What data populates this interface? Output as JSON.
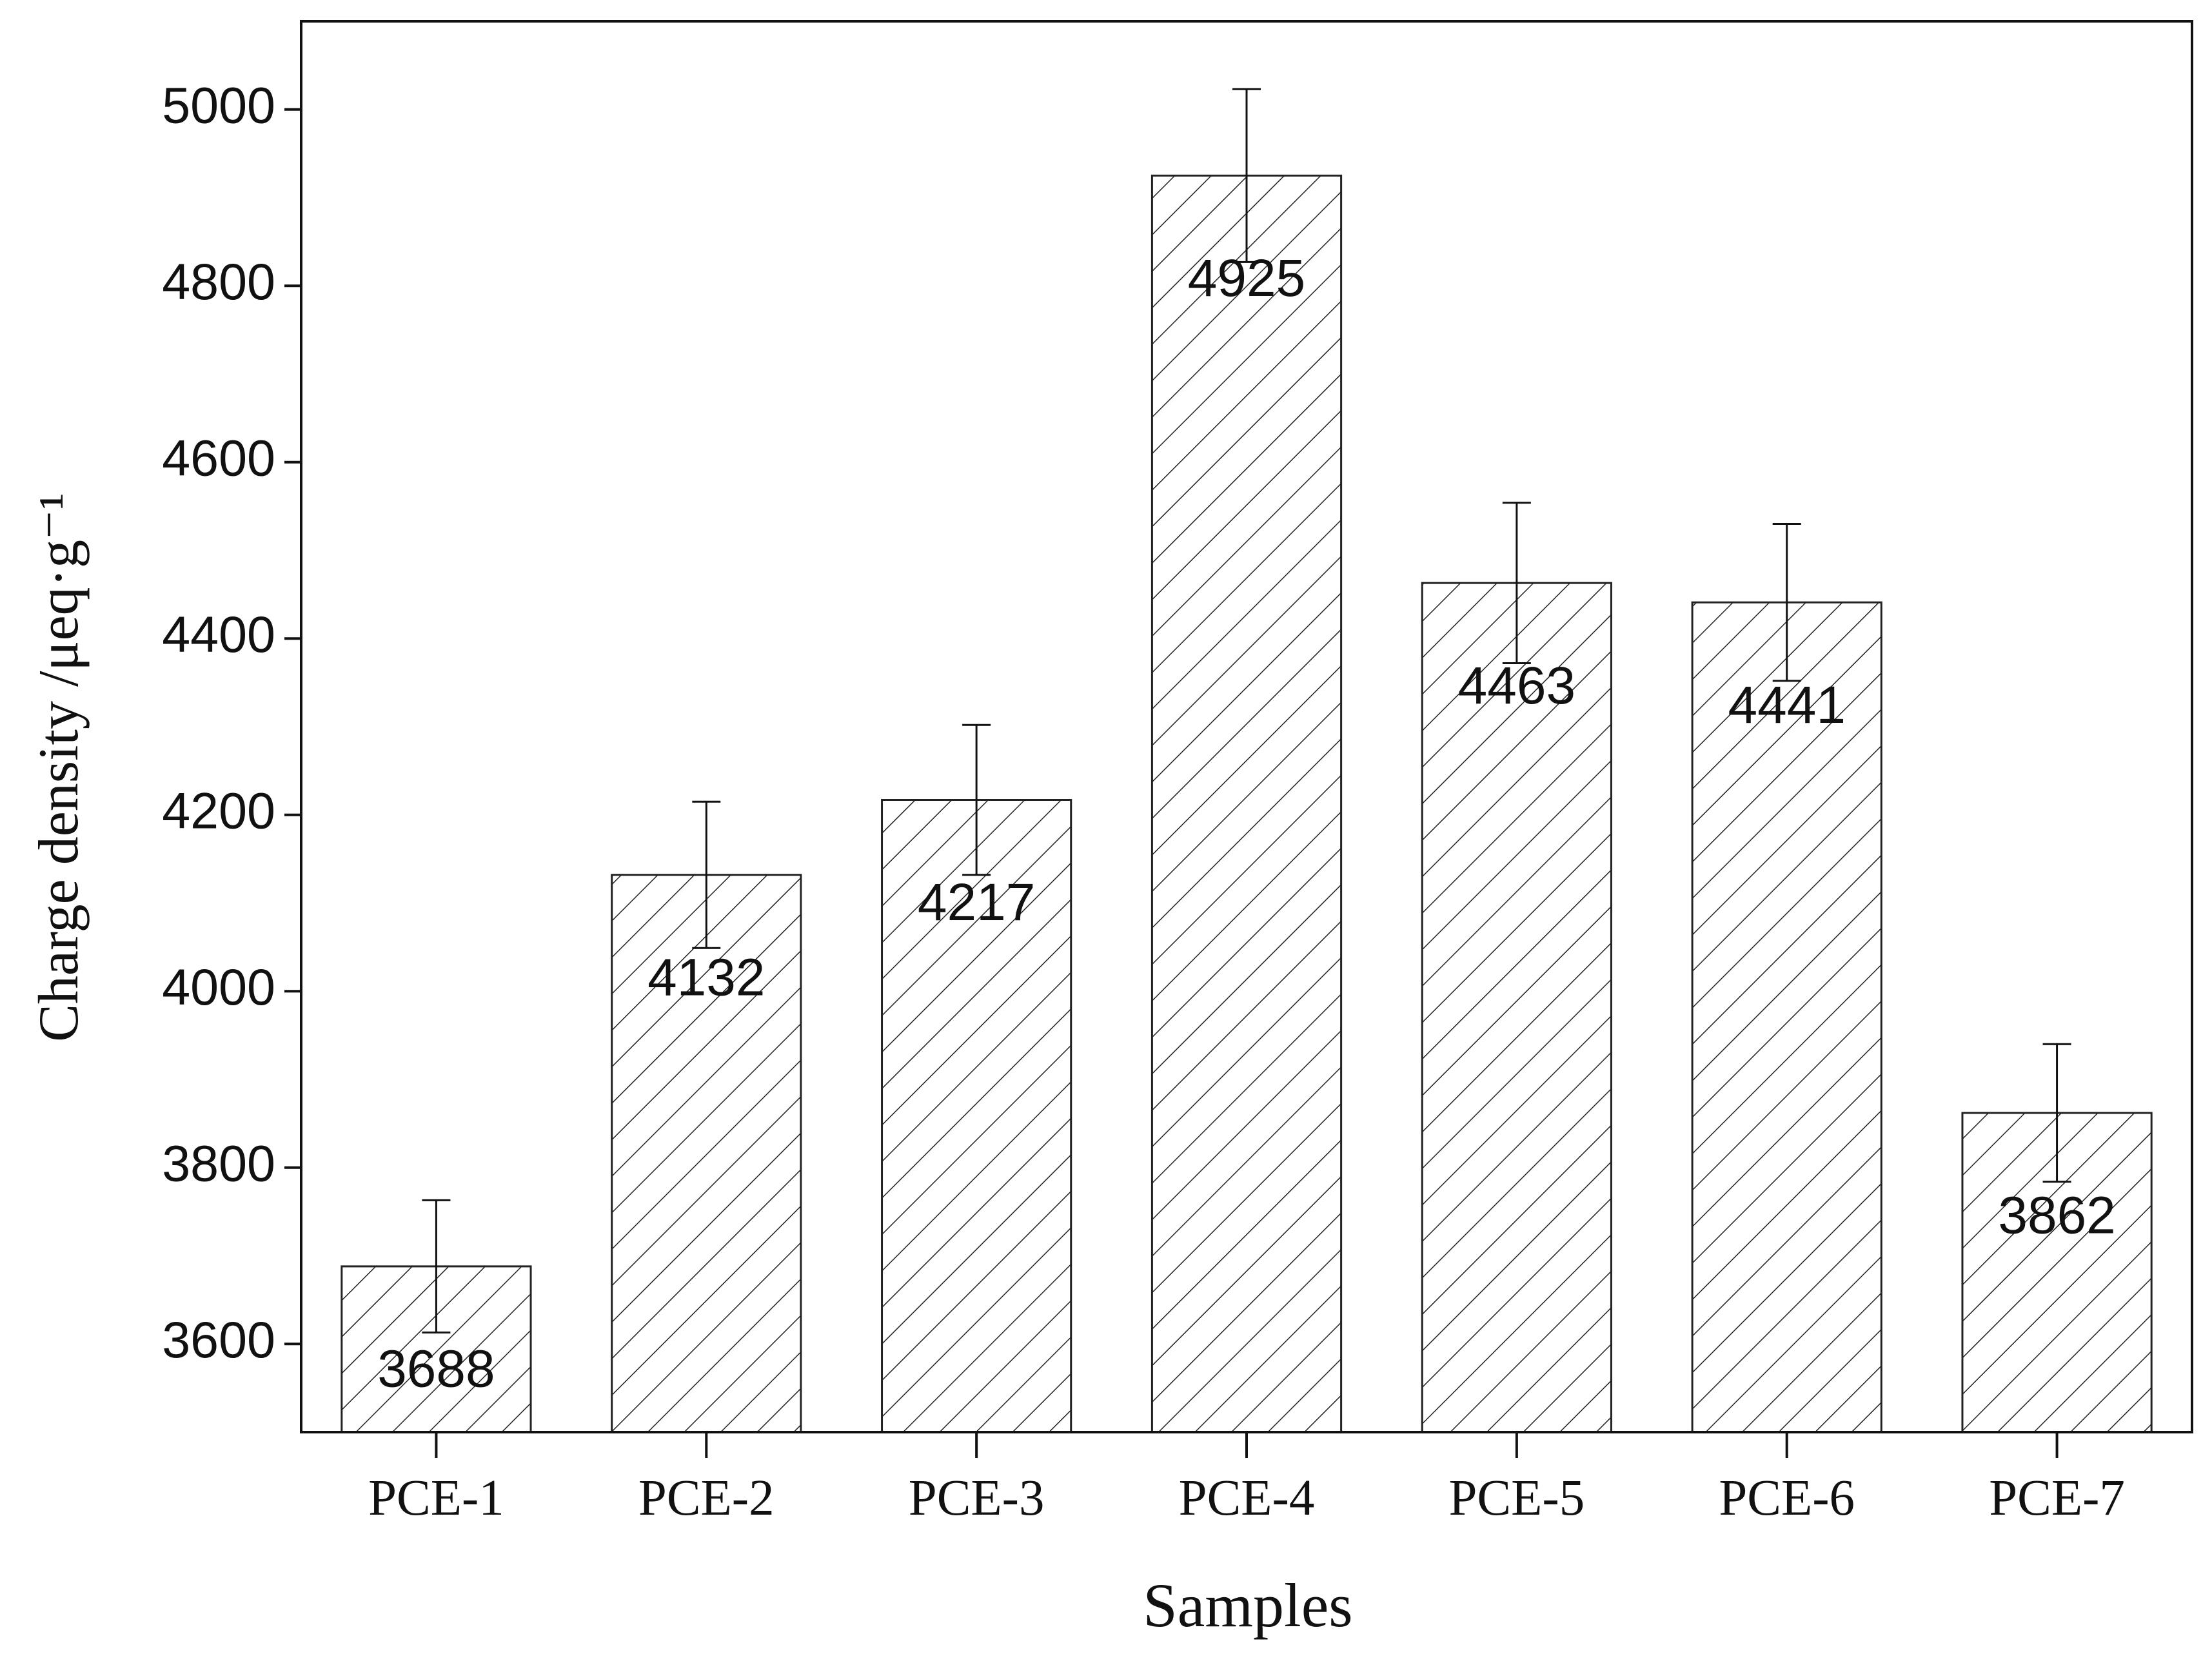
{
  "chart_data": {
    "type": "bar",
    "x_label": "Samples",
    "y_label": "Charge density /μeq·g⁻¹",
    "categories": [
      "PCE-1",
      "PCE-2",
      "PCE-3",
      "PCE-4",
      "PCE-5",
      "PCE-6",
      "PCE-7"
    ],
    "values": [
      3688,
      4132,
      4217,
      4925,
      4463,
      4441,
      3862
    ],
    "errors": [
      75,
      83,
      85,
      98,
      91,
      89,
      78
    ],
    "color": "#ffffff",
    "hatch": "#222222",
    "ylim": [
      3500,
      5100
    ],
    "yticks": [
      3600,
      3800,
      4000,
      4200,
      4400,
      4600,
      4800,
      5000
    ],
    "grid": false
  }
}
